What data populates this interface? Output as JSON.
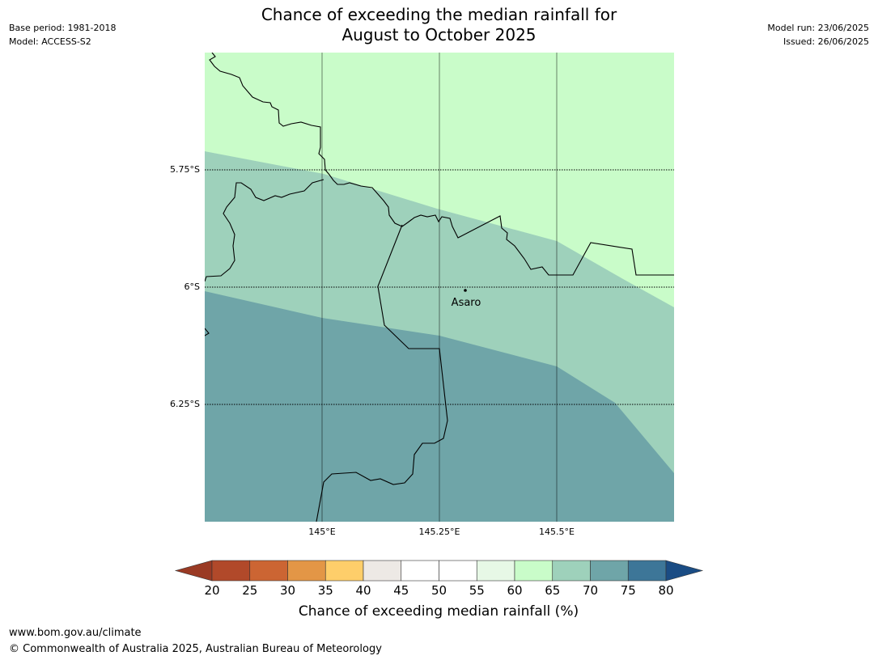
{
  "header": {
    "base_period": "Base period: 1981-2018",
    "model": "Model: ACCESS-S2",
    "title_line1": "Chance of exceeding the median rainfall for",
    "title_line2": "August to October 2025",
    "model_run": "Model run: 23/06/2025",
    "issued": "Issued: 26/06/2025"
  },
  "map": {
    "lat_labels": [
      "5.75°S",
      "6°S",
      "6.25°S"
    ],
    "lon_labels": [
      "145°E",
      "145.25°E",
      "145.5°E"
    ],
    "place_name": "Asaro",
    "zone_colors": {
      "c60_65": "#c9fcc9",
      "c65_70": "#9ed1bb",
      "c70_75": "#6fa5a8"
    }
  },
  "colorbar": {
    "ticks": [
      "20",
      "25",
      "30",
      "35",
      "40",
      "45",
      "50",
      "55",
      "60",
      "65",
      "70",
      "75",
      "80"
    ],
    "colors": [
      "#b1492a",
      "#cc6533",
      "#e39646",
      "#fece6a",
      "#ede9e5",
      "#ffffff",
      "#ffffff",
      "#e7f8e6",
      "#c9fcc9",
      "#9ed1bb",
      "#6fa5a8",
      "#3d7698"
    ],
    "under_color": "#9a3a24",
    "over_color": "#1a4c84",
    "label": "Chance of exceeding median rainfall (%)"
  },
  "footer": {
    "url": "www.bom.gov.au/climate",
    "copyright": "© Commonwealth of Australia 2025, Australian Bureau of Meteorology"
  }
}
